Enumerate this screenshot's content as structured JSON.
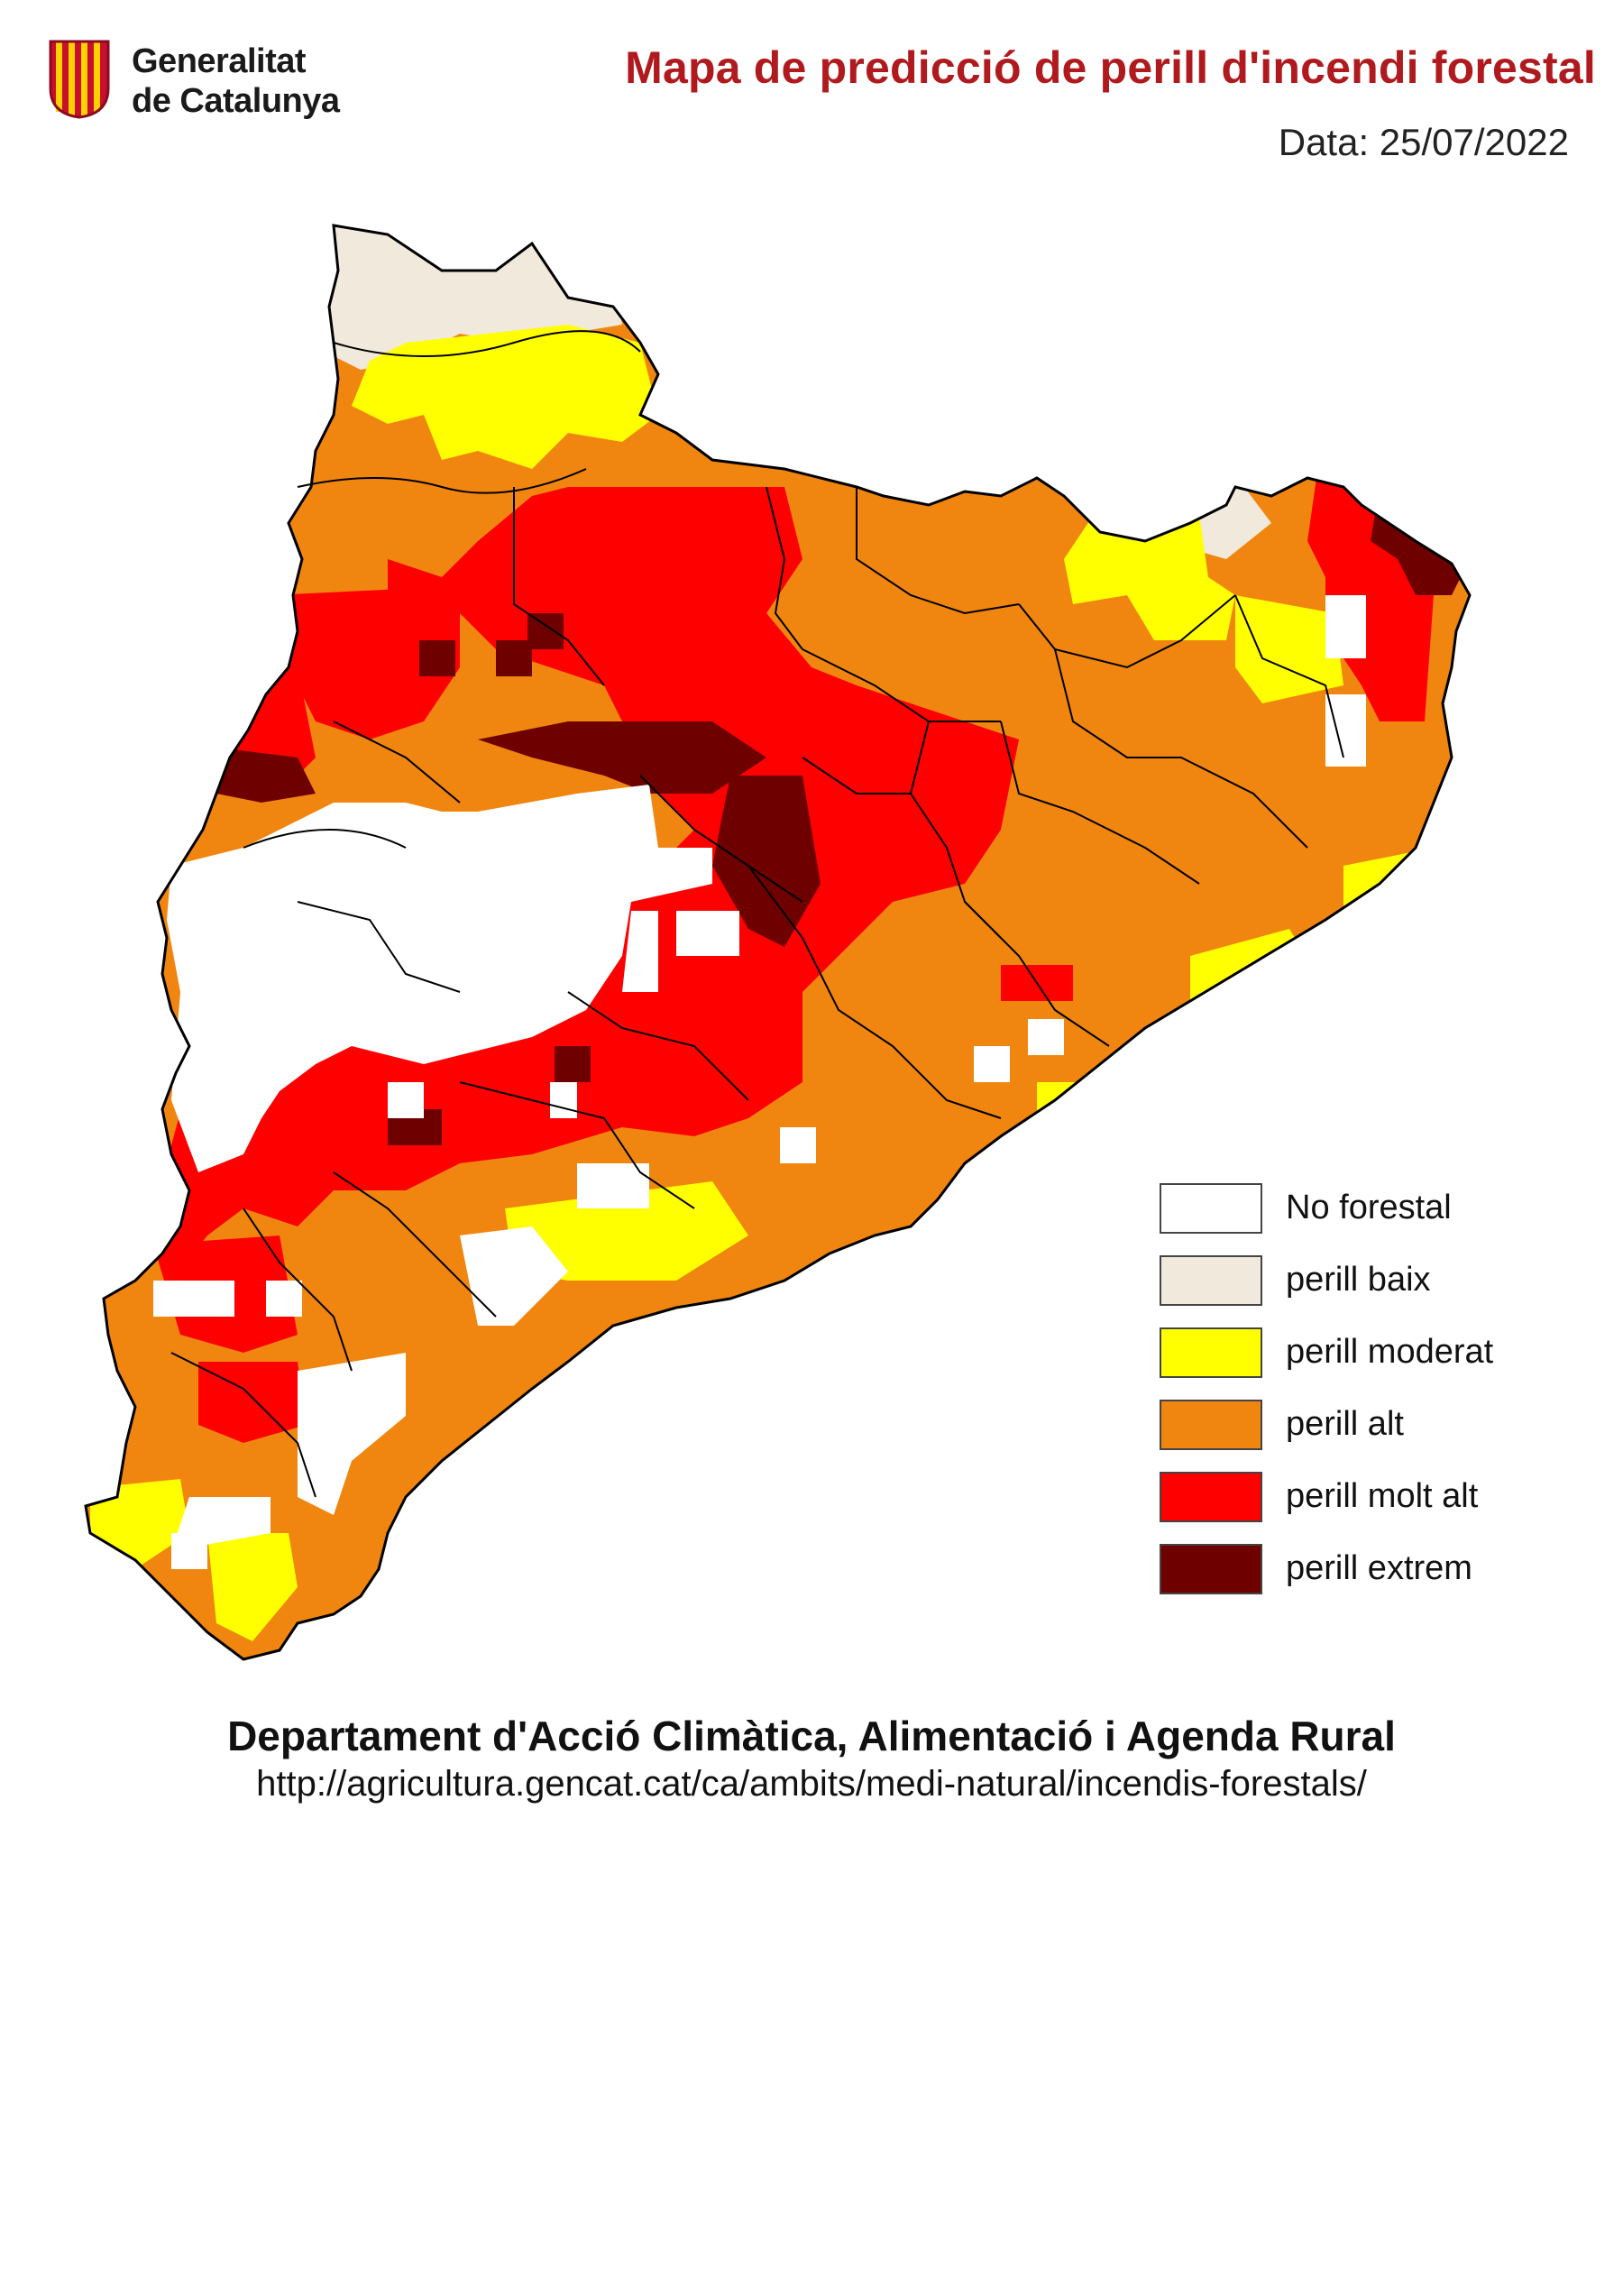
{
  "header": {
    "org_line1": "Generalitat",
    "org_line2": "de Catalunya",
    "title": "Mapa de predicció de perill d'incendi forestal",
    "date_label": "Data: 25/07/2022"
  },
  "colors": {
    "no_forestal": "#ffffff",
    "baix": "#f1e9dc",
    "moderat": "#ffff00",
    "alt": "#f0860f",
    "molt_alt": "#ff0000",
    "extrem": "#6e0000",
    "brand_red": "#b01a1e"
  },
  "legend": {
    "items": [
      {
        "label": "No forestal",
        "color": "#ffffff"
      },
      {
        "label": "perill baix",
        "color": "#f1e9dc"
      },
      {
        "label": "perill moderat",
        "color": "#ffff00"
      },
      {
        "label": "perill alt",
        "color": "#f0860f"
      },
      {
        "label": "perill molt alt",
        "color": "#ff0000"
      },
      {
        "label": "perill extrem",
        "color": "#6e0000"
      }
    ]
  },
  "footer": {
    "department": "Departament d'Acció Climàtica, Alimentació i Agenda Rural",
    "url": "http://agricultura.gencat.cat/ca/ambits/medi-natural/incendis-forestals/"
  }
}
